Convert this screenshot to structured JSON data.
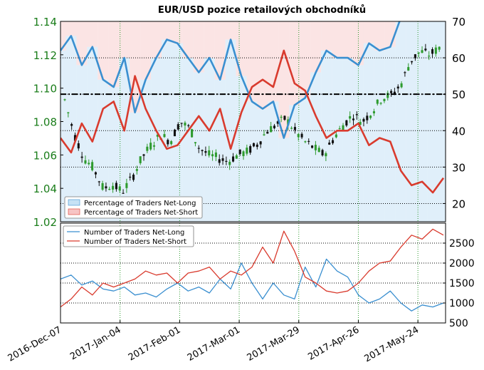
{
  "chart_data": [
    {
      "type": "line",
      "title": "EUR/USD pozice retailových obchodníků",
      "xlabel": "",
      "ylabel": "",
      "x_ticks": [
        "2016-Dec-07",
        "2017-Jan-04",
        "2017-Feb-01",
        "2017-Mar-01",
        "2017-Mar-29",
        "2017-Apr-26",
        "2017-May-24"
      ],
      "x_range": [
        "2016-12-07",
        "2017-06-06"
      ],
      "ylim_left": [
        1.02,
        1.14
      ],
      "y_ticks_left": [
        "1.02",
        "1.04",
        "1.06",
        "1.08",
        "1.10",
        "1.12",
        "1.14"
      ],
      "ylim_right": [
        15,
        70
      ],
      "y_ticks_right": [
        "20",
        "30",
        "40",
        "50",
        "60",
        "70"
      ],
      "reference_line": {
        "axis": "right",
        "value": 50
      },
      "grid": true,
      "legend": {
        "placement": "bottom-left"
      },
      "colors": {
        "net_long": "#3a8fd0",
        "net_short": "#d93b2e",
        "long_fill": "#c6e2f5",
        "short_fill": "#f7c4c4",
        "candle_up": "#2e9b2e",
        "candle_down": "#111111",
        "axis_left": "#1a7d1a"
      },
      "series": [
        {
          "name": "Percentage of Traders Net-Long",
          "axis": "right",
          "color": "#3a8fd0",
          "x": [
            "2016-12-07",
            "2016-12-12",
            "2016-12-17",
            "2016-12-22",
            "2016-12-27",
            "2017-01-01",
            "2017-01-06",
            "2017-01-11",
            "2017-01-16",
            "2017-01-21",
            "2017-01-26",
            "2017-01-31",
            "2017-02-05",
            "2017-02-10",
            "2017-02-15",
            "2017-02-20",
            "2017-02-25",
            "2017-03-02",
            "2017-03-07",
            "2017-03-12",
            "2017-03-17",
            "2017-03-22",
            "2017-03-27",
            "2017-04-01",
            "2017-04-06",
            "2017-04-11",
            "2017-04-16",
            "2017-04-21",
            "2017-04-26",
            "2017-05-01",
            "2017-05-06",
            "2017-05-11",
            "2017-05-16",
            "2017-05-21",
            "2017-05-26",
            "2017-05-31",
            "2017-06-05"
          ],
          "values": [
            62,
            66,
            58,
            63,
            54,
            52,
            60,
            45,
            54,
            60,
            65,
            64,
            60,
            56,
            60,
            54,
            65,
            55,
            48,
            46,
            48,
            38,
            47,
            49,
            56,
            62,
            60,
            60,
            58,
            64,
            62,
            63,
            71,
            75,
            74,
            77,
            73
          ]
        },
        {
          "name": "Percentage of Traders Net-Short",
          "axis": "right",
          "color": "#d93b2e",
          "x": [
            "2016-12-07",
            "2016-12-12",
            "2016-12-17",
            "2016-12-22",
            "2016-12-27",
            "2017-01-01",
            "2017-01-06",
            "2017-01-11",
            "2017-01-16",
            "2017-01-21",
            "2017-01-26",
            "2017-01-31",
            "2017-02-05",
            "2017-02-10",
            "2017-02-15",
            "2017-02-20",
            "2017-02-25",
            "2017-03-02",
            "2017-03-07",
            "2017-03-12",
            "2017-03-17",
            "2017-03-22",
            "2017-03-27",
            "2017-04-01",
            "2017-04-06",
            "2017-04-11",
            "2017-04-16",
            "2017-04-21",
            "2017-04-26",
            "2017-05-01",
            "2017-05-06",
            "2017-05-11",
            "2017-05-16",
            "2017-05-21",
            "2017-05-26",
            "2017-05-31",
            "2017-06-05"
          ],
          "values": [
            38,
            34,
            42,
            37,
            46,
            48,
            40,
            55,
            46,
            40,
            35,
            36,
            40,
            44,
            40,
            46,
            35,
            45,
            52,
            54,
            52,
            62,
            53,
            51,
            44,
            38,
            40,
            40,
            42,
            36,
            38,
            37,
            29,
            25,
            26,
            23,
            27
          ]
        }
      ]
    },
    {
      "type": "line",
      "xlabel": "",
      "ylabel": "",
      "ylim": [
        500,
        3000
      ],
      "y_ticks": [
        "500",
        "1000",
        "1500",
        "2000",
        "2500"
      ],
      "grid": true,
      "legend": {
        "placement": "top-left"
      },
      "series": [
        {
          "name": "Number of Traders Net-Long",
          "color": "#3a8fd0",
          "x": [
            "2016-12-07",
            "2016-12-12",
            "2016-12-17",
            "2016-12-22",
            "2016-12-27",
            "2017-01-01",
            "2017-01-06",
            "2017-01-11",
            "2017-01-16",
            "2017-01-21",
            "2017-01-26",
            "2017-01-31",
            "2017-02-05",
            "2017-02-10",
            "2017-02-15",
            "2017-02-20",
            "2017-02-25",
            "2017-03-02",
            "2017-03-07",
            "2017-03-12",
            "2017-03-17",
            "2017-03-22",
            "2017-03-27",
            "2017-04-01",
            "2017-04-06",
            "2017-04-11",
            "2017-04-16",
            "2017-04-21",
            "2017-04-26",
            "2017-05-01",
            "2017-05-06",
            "2017-05-11",
            "2017-05-16",
            "2017-05-21",
            "2017-05-26",
            "2017-05-31",
            "2017-06-05"
          ],
          "values": [
            1600,
            1700,
            1450,
            1550,
            1350,
            1300,
            1400,
            1200,
            1250,
            1150,
            1350,
            1500,
            1300,
            1400,
            1250,
            1600,
            1350,
            2000,
            1500,
            1100,
            1500,
            1200,
            1100,
            1900,
            1400,
            2100,
            1800,
            1650,
            1200,
            1000,
            1100,
            1300,
            1000,
            800,
            950,
            900,
            1000
          ]
        },
        {
          "name": "Number of Traders Net-Short",
          "color": "#d93b2e",
          "x": [
            "2016-12-07",
            "2016-12-12",
            "2016-12-17",
            "2016-12-22",
            "2016-12-27",
            "2017-01-01",
            "2017-01-06",
            "2017-01-11",
            "2017-01-16",
            "2017-01-21",
            "2017-01-26",
            "2017-01-31",
            "2017-02-05",
            "2017-02-10",
            "2017-02-15",
            "2017-02-20",
            "2017-02-25",
            "2017-03-02",
            "2017-03-07",
            "2017-03-12",
            "2017-03-17",
            "2017-03-22",
            "2017-03-27",
            "2017-04-01",
            "2017-04-06",
            "2017-04-11",
            "2017-04-16",
            "2017-04-21",
            "2017-04-26",
            "2017-05-01",
            "2017-05-06",
            "2017-05-11",
            "2017-05-16",
            "2017-05-21",
            "2017-05-26",
            "2017-05-31",
            "2017-06-05"
          ],
          "values": [
            900,
            1100,
            1400,
            1200,
            1500,
            1400,
            1500,
            1600,
            1800,
            1700,
            1750,
            1500,
            1750,
            1800,
            1900,
            1600,
            1800,
            1700,
            1900,
            2400,
            2000,
            2800,
            2300,
            1650,
            1500,
            1300,
            1250,
            1300,
            1500,
            1800,
            2000,
            2050,
            2400,
            2700,
            2600,
            2850,
            2700
          ]
        }
      ]
    }
  ]
}
